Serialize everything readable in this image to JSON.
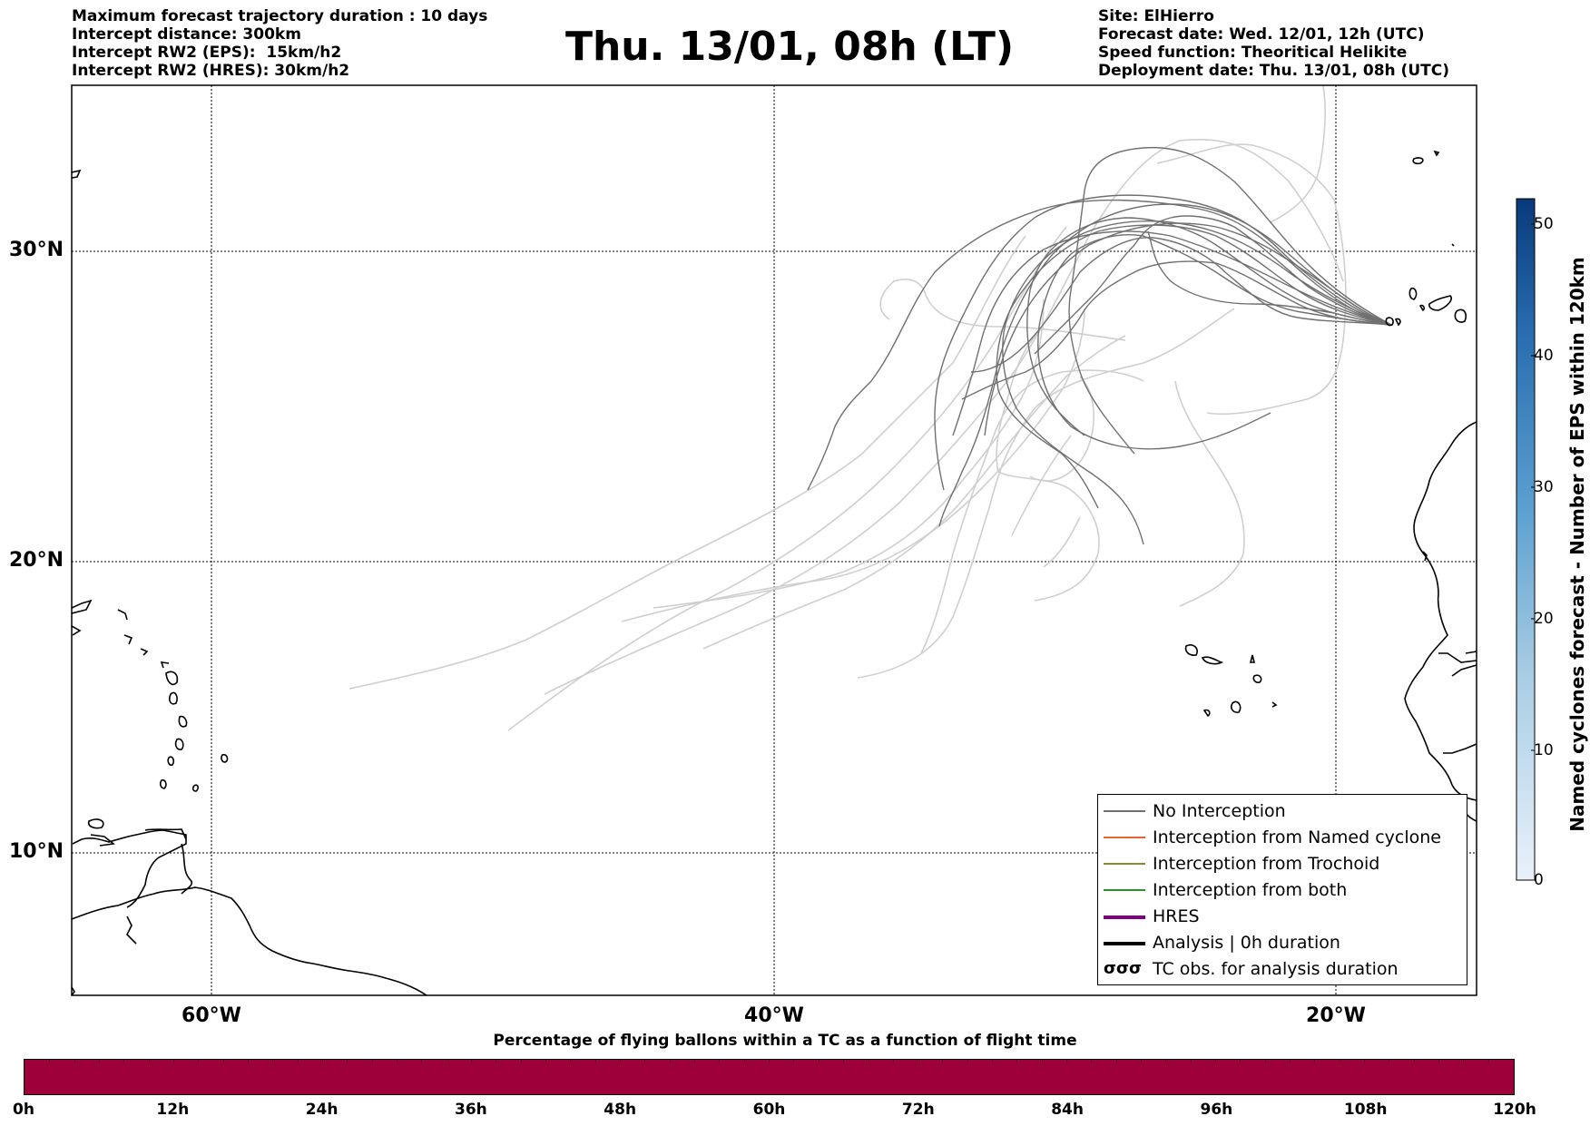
{
  "header": {
    "left_lines": [
      "Maximum forecast trajectory duration : 10 days",
      "Intercept distance: 300km",
      "Intercept RW2 (EPS):  15km/h2",
      "Intercept RW2 (HRES): 30km/h2"
    ],
    "title": "Thu. 13/01, 08h (LT)",
    "right_lines": [
      "Site: ElHierro",
      "Forecast date: Wed. 12/01, 12h (UTC)",
      "Speed function: Theoritical Helikite",
      "Deployment date: Thu. 13/01, 08h (UTC)"
    ]
  },
  "map": {
    "lat_labels": [
      "30°N",
      "20°N",
      "10°N"
    ],
    "lon_labels": [
      "60°W",
      "40°W",
      "20°W"
    ],
    "colors": {
      "no_interception": "#707070",
      "faded_track": "#cfcfcf",
      "coast": "#000000"
    }
  },
  "legend": {
    "items": [
      {
        "label": "No Interception",
        "color": "#707070",
        "style": "thin"
      },
      {
        "label": "Interception from Named cyclone",
        "color": "#e8642c",
        "style": "thin"
      },
      {
        "label": "Interception from Trochoid",
        "color": "#8a8a30",
        "style": "thin"
      },
      {
        "label": "Interception from both",
        "color": "#2f8f2f",
        "style": "thin"
      },
      {
        "label": "HRES",
        "color": "#800080",
        "style": "thick"
      },
      {
        "label": "Analysis | 0h duration",
        "color": "#000000",
        "style": "thick"
      },
      {
        "label": "TC obs. for analysis duration",
        "color": "#000000",
        "style": "symbol"
      }
    ]
  },
  "colorbar": {
    "title": "Named cyclones forecast - Number of EPS within 120km",
    "ticks": [
      "50",
      "40",
      "30",
      "20",
      "10",
      "0"
    ],
    "gradient": [
      "#e9f1fa",
      "#a9cde4",
      "#5a9fcf",
      "#2a6db0",
      "#083a7a"
    ]
  },
  "percentage_bar": {
    "title": "Percentage of flying ballons within a TC as a function of flight time",
    "color": "#9e003a",
    "ticks": [
      "0h",
      "12h",
      "24h",
      "36h",
      "48h",
      "60h",
      "72h",
      "84h",
      "96h",
      "108h",
      "120h"
    ]
  }
}
